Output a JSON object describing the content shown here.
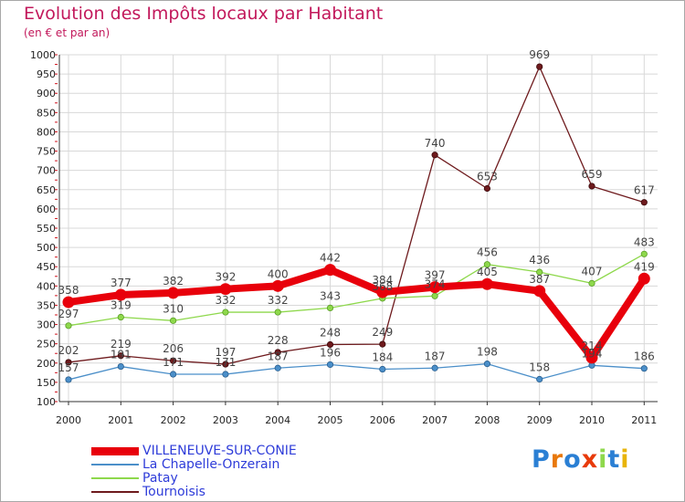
{
  "header": {
    "title": "Evolution des Impôts locaux par Habitant",
    "subtitle": "(en € et par an)"
  },
  "logo": {
    "text": "Proxiti"
  },
  "colors": {
    "title": "#c2185b",
    "grid": "#d8d8d8",
    "axis": "#333333",
    "tick_mark": "#d0101a",
    "legend_text": "#2e3cd9",
    "label_text": "#444444"
  },
  "chart_data": {
    "type": "line",
    "title": "Evolution des Impôts locaux par Habitant",
    "subtitle": "(en € et par an)",
    "xlabel": "",
    "ylabel": "",
    "ylim": [
      100,
      1000
    ],
    "y_ticks": [
      100,
      150,
      200,
      250,
      300,
      350,
      400,
      450,
      500,
      550,
      600,
      650,
      700,
      750,
      800,
      850,
      900,
      950,
      1000
    ],
    "categories": [
      "2000",
      "2001",
      "2002",
      "2003",
      "2004",
      "2005",
      "2006",
      "2007",
      "2008",
      "2009",
      "2010",
      "2011"
    ],
    "grid": true,
    "legend_position": "bottom-left",
    "series": [
      {
        "name": "VILLENEUVE-SUR-CONIE",
        "color": "#e8000b",
        "values": [
          358,
          377,
          382,
          392,
          400,
          442,
          384,
          397,
          405,
          387,
          214,
          419
        ],
        "labels": [
          "358",
          "377",
          "382",
          "392",
          "400",
          "442",
          "384",
          "397",
          "405",
          "387",
          "214",
          "419"
        ]
      },
      {
        "name": "La Chapelle-Onzerain",
        "color": "#4b8fc9",
        "values": [
          157,
          191,
          171,
          171,
          187,
          196,
          184,
          187,
          198,
          158,
          194,
          186
        ],
        "labels": [
          "157",
          "191",
          "171",
          "171",
          "187",
          "196",
          "184",
          "187",
          "198",
          "158",
          "194",
          "186"
        ]
      },
      {
        "name": "Patay",
        "color": "#8ed84c",
        "values": [
          297,
          319,
          310,
          332,
          332,
          343,
          368,
          374,
          456,
          436,
          407,
          483
        ],
        "labels": [
          "297",
          "319",
          "310",
          "332",
          "332",
          "343",
          "368",
          "374",
          "456",
          "436",
          "407",
          "483"
        ]
      },
      {
        "name": "Tournoisis",
        "color": "#6e1a1d",
        "values": [
          202,
          219,
          206,
          197,
          228,
          248,
          249,
          740,
          653,
          969,
          659,
          617
        ],
        "labels": [
          "202",
          "219",
          "206",
          "197",
          "228",
          "248",
          "249",
          "740",
          "653",
          "969",
          "659",
          "617"
        ]
      }
    ]
  }
}
